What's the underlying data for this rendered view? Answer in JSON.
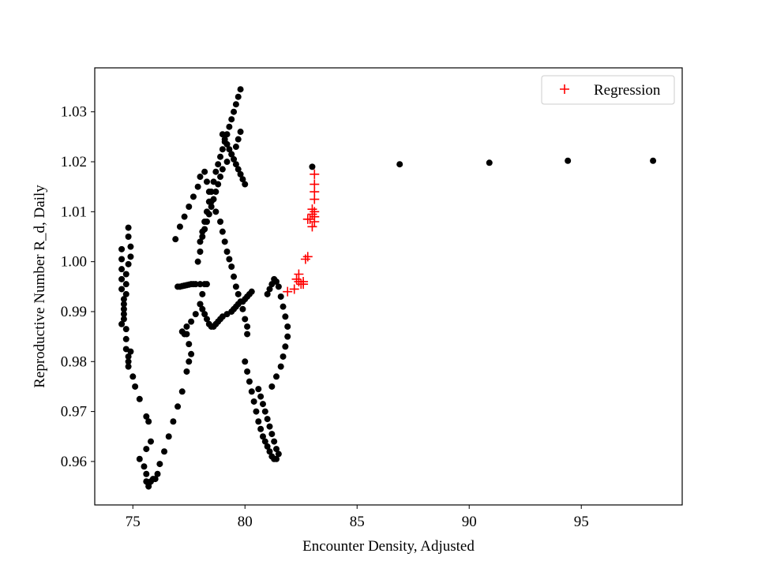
{
  "chart_data": {
    "type": "scatter",
    "title": "",
    "xlabel": "Encounter Density, Adjusted",
    "ylabel": "Reproductive Number R_d, Daily",
    "xlim": [
      73.3,
      99.5
    ],
    "ylim": [
      0.9513,
      1.0388
    ],
    "x_ticks": [
      75,
      80,
      85,
      90,
      95
    ],
    "x_tick_labels": [
      "75",
      "80",
      "85",
      "90",
      "95"
    ],
    "y_ticks": [
      0.96,
      0.97,
      0.98,
      0.99,
      1.0,
      1.01,
      1.02,
      1.03
    ],
    "y_tick_labels": [
      "0.96",
      "0.97",
      "0.98",
      "0.99",
      "1.00",
      "1.01",
      "1.02",
      "1.03"
    ],
    "grid": false,
    "legend": {
      "position": "top-right",
      "entries": [
        {
          "label": "Regression",
          "color": "#ff0000",
          "marker": "+"
        }
      ]
    },
    "series": [
      {
        "marker": "dot",
        "color": "#000000",
        "x": [
          74.5,
          74.5,
          74.5,
          74.5,
          74.5,
          74.6,
          74.6,
          74.6,
          74.7,
          74.7,
          74.7,
          74.8,
          74.8,
          74.8,
          74.9,
          74.9,
          74.9,
          74.8,
          74.8,
          74.8,
          74.7,
          74.7,
          74.7,
          74.6,
          74.6,
          74.5,
          75.0,
          75.1,
          75.3,
          75.6,
          75.7,
          75.8,
          75.6,
          75.3,
          75.5,
          75.6,
          75.6,
          75.7,
          75.7,
          75.8,
          75.9,
          76.0,
          76.1,
          76.2,
          76.4,
          76.6,
          76.8,
          77.0,
          77.2,
          77.4,
          77.5,
          77.6,
          77.5,
          77.4,
          77.3,
          77.2,
          77.4,
          77.6,
          77.8,
          78.0,
          78.1,
          78.3,
          78.2,
          78.0,
          77.8,
          77.7,
          77.6,
          77.5,
          77.4,
          77.3,
          77.2,
          77.1,
          77.0,
          76.9,
          77.1,
          77.3,
          77.5,
          77.7,
          77.9,
          78.0,
          78.2,
          78.3,
          78.4,
          78.5,
          78.7,
          78.9,
          79.0,
          79.1,
          79.2,
          79.3,
          79.4,
          79.5,
          79.6,
          79.7,
          79.8,
          79.9,
          80.0,
          80.1,
          80.1,
          79.8,
          79.7,
          79.6,
          79.5,
          79.4,
          79.3,
          79.2,
          79.1,
          79.0,
          78.9,
          78.8,
          78.7,
          78.6,
          78.5,
          78.4,
          78.3,
          78.2,
          78.1,
          78.0,
          78.0,
          77.9,
          78.0,
          78.1,
          78.2,
          78.3,
          78.4,
          78.5,
          78.6,
          78.7,
          78.8,
          78.9,
          79.0,
          79.2,
          79.4,
          79.5,
          79.6,
          79.7,
          79.9,
          80.0,
          80.1,
          80.2,
          80.3,
          79.8,
          79.7,
          79.6,
          79.4,
          79.2,
          79.0,
          78.9,
          78.8,
          78.7,
          78.6,
          78.5,
          78.4,
          78.3,
          78.2,
          78.1,
          79.0,
          79.1,
          79.2,
          79.3,
          79.4,
          79.5,
          79.6,
          79.7,
          79.8,
          79.9,
          80.0,
          80.0,
          80.1,
          80.2,
          80.3,
          80.4,
          80.5,
          80.6,
          80.7,
          80.8,
          80.9,
          81.0,
          81.1,
          81.2,
          81.3,
          81.4,
          81.5,
          81.4,
          81.3,
          81.2,
          81.1,
          81.0,
          80.9,
          80.8,
          80.7,
          80.6,
          81.2,
          81.4,
          81.6,
          81.7,
          81.8,
          81.9,
          81.9,
          81.8,
          81.7,
          81.6,
          81.5,
          81.4,
          81.3,
          81.2,
          81.1,
          81.0,
          83.0,
          86.9,
          90.9,
          94.4,
          98.2
        ],
        "y": [
          1.0025,
          1.0005,
          0.9985,
          0.9965,
          0.9945,
          0.9925,
          0.9905,
          0.9885,
          0.9865,
          0.9845,
          0.9825,
          0.981,
          0.979,
          0.98,
          0.982,
          1.001,
          1.003,
          1.005,
          1.0068,
          0.9995,
          0.9975,
          0.9955,
          0.9935,
          0.9915,
          0.9895,
          0.9875,
          0.977,
          0.975,
          0.9725,
          0.969,
          0.968,
          0.964,
          0.9625,
          0.9605,
          0.959,
          0.9575,
          0.956,
          0.955,
          0.9555,
          0.956,
          0.9565,
          0.9565,
          0.9575,
          0.9595,
          0.962,
          0.965,
          0.968,
          0.971,
          0.974,
          0.978,
          0.98,
          0.9815,
          0.9835,
          0.9855,
          0.9855,
          0.986,
          0.987,
          0.988,
          0.9895,
          0.9915,
          0.9935,
          0.9955,
          0.9955,
          0.9955,
          0.9955,
          0.9955,
          0.9955,
          0.9954,
          0.9953,
          0.9952,
          0.9951,
          0.995,
          0.995,
          1.0045,
          1.007,
          1.009,
          1.011,
          1.013,
          1.015,
          1.017,
          1.018,
          1.016,
          1.014,
          1.012,
          1.01,
          1.008,
          1.006,
          1.004,
          1.002,
          1.0005,
          0.999,
          0.997,
          0.995,
          0.9935,
          0.992,
          0.9905,
          0.9885,
          0.987,
          0.9855,
          1.0345,
          1.033,
          1.0315,
          1.03,
          1.0285,
          1.027,
          1.0255,
          1.024,
          1.0225,
          1.021,
          1.0195,
          1.018,
          1.016,
          1.014,
          1.012,
          1.01,
          1.008,
          1.006,
          1.004,
          1.002,
          1.0,
          0.9915,
          0.9905,
          0.9895,
          0.9885,
          0.9875,
          0.987,
          0.987,
          0.9875,
          0.988,
          0.9885,
          0.989,
          0.9895,
          0.99,
          0.9905,
          0.991,
          0.9915,
          0.992,
          0.9925,
          0.993,
          0.9935,
          0.994,
          1.026,
          1.0245,
          1.023,
          1.0215,
          1.02,
          1.0185,
          1.017,
          1.0155,
          1.014,
          1.0125,
          1.011,
          1.0095,
          1.008,
          1.0065,
          1.005,
          1.0255,
          1.0245,
          1.0235,
          1.0225,
          1.0215,
          1.0205,
          1.0195,
          1.0185,
          1.0175,
          1.0165,
          1.0155,
          0.98,
          0.978,
          0.976,
          0.974,
          0.972,
          0.97,
          0.968,
          0.9665,
          0.965,
          0.964,
          0.963,
          0.962,
          0.961,
          0.9605,
          0.9605,
          0.9615,
          0.9625,
          0.964,
          0.9655,
          0.967,
          0.9685,
          0.97,
          0.9715,
          0.973,
          0.9745,
          0.975,
          0.977,
          0.979,
          0.981,
          0.983,
          0.985,
          0.987,
          0.989,
          0.991,
          0.993,
          0.995,
          0.996,
          0.9965,
          0.9955,
          0.9945,
          0.9935,
          1.019,
          1.0195,
          1.0198,
          1.0202,
          1.0202
        ]
      },
      {
        "name": "Regression",
        "marker": "+",
        "color": "#ff0000",
        "x": [
          81.9,
          82.2,
          82.3,
          82.4,
          82.4,
          82.5,
          82.6,
          82.6,
          82.7,
          82.8,
          82.8,
          82.9,
          83.0,
          83.0,
          83.0,
          83.1,
          83.1,
          83.1,
          83.1,
          83.1,
          83.1,
          83.1
        ],
        "y": [
          0.994,
          0.9945,
          0.9965,
          0.9975,
          0.996,
          0.9955,
          0.996,
          0.9955,
          1.0005,
          1.001,
          1.0085,
          1.0085,
          1.007,
          1.0095,
          1.0105,
          1.008,
          1.009,
          1.01,
          1.0125,
          1.014,
          1.0155,
          1.0175
        ]
      }
    ]
  }
}
